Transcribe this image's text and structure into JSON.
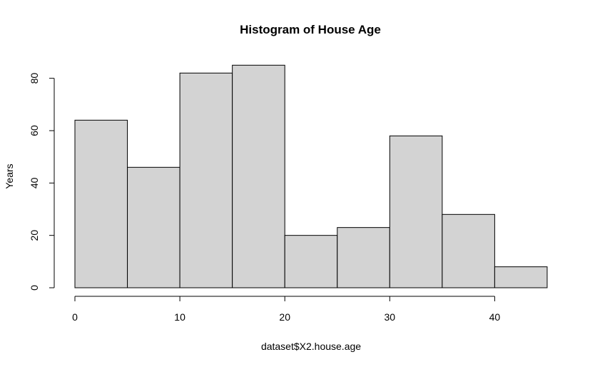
{
  "chart_data": {
    "type": "bar",
    "title": "Histogram of House Age",
    "xlabel": "dataset$X2.house.age",
    "ylabel": "Years",
    "bins": [
      {
        "start": 0,
        "end": 5,
        "count": 64
      },
      {
        "start": 5,
        "end": 10,
        "count": 46
      },
      {
        "start": 10,
        "end": 15,
        "count": 82
      },
      {
        "start": 15,
        "end": 20,
        "count": 85
      },
      {
        "start": 20,
        "end": 25,
        "count": 20
      },
      {
        "start": 25,
        "end": 30,
        "count": 23
      },
      {
        "start": 30,
        "end": 35,
        "count": 58
      },
      {
        "start": 35,
        "end": 40,
        "count": 28
      },
      {
        "start": 40,
        "end": 45,
        "count": 8
      }
    ],
    "xticks": [
      "0",
      "10",
      "20",
      "30",
      "40"
    ],
    "xtick_values": [
      0,
      10,
      20,
      30,
      40
    ],
    "yticks": [
      "0",
      "20",
      "40",
      "60",
      "80"
    ],
    "ytick_values": [
      0,
      20,
      40,
      60,
      80
    ],
    "xlim": [
      0,
      45
    ],
    "ylim": [
      0,
      85
    ],
    "grid": false,
    "bar_color": "#d3d3d3",
    "edge_color": "#000000"
  }
}
